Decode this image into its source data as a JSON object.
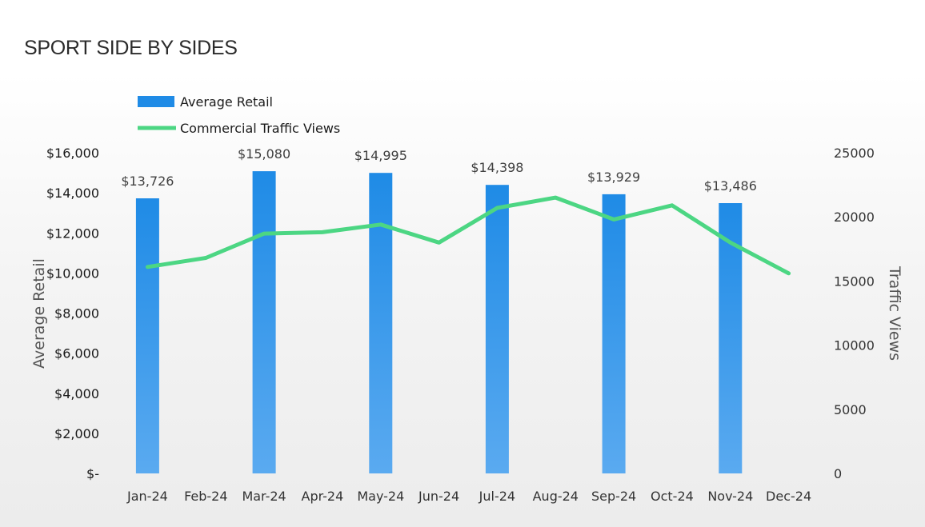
{
  "page": {
    "title": "SPORT SIDE BY SIDES"
  },
  "chart_data": {
    "type": "bar",
    "categories": [
      "Jan-24",
      "Feb-24",
      "Mar-24",
      "Apr-24",
      "May-24",
      "Jun-24",
      "Jul-24",
      "Aug-24",
      "Sep-24",
      "Oct-24",
      "Nov-24",
      "Dec-24"
    ],
    "series": [
      {
        "name": "Average Retail",
        "type": "bar",
        "axis": "left",
        "color": "#1f8be6",
        "values": [
          13726,
          null,
          15080,
          null,
          14995,
          null,
          14398,
          null,
          13929,
          null,
          13486,
          null
        ],
        "labels": [
          "$13,726",
          "",
          "$15,080",
          "",
          "$14,995",
          "",
          "$14,398",
          "",
          "$13,929",
          "",
          "$13,486",
          ""
        ]
      },
      {
        "name": "Commercial Traffic Views",
        "type": "line",
        "axis": "right",
        "color": "#4cd683",
        "values": [
          16100,
          16800,
          18700,
          18800,
          19400,
          18000,
          20700,
          21500,
          19800,
          20900,
          18000,
          15600
        ]
      }
    ],
    "ylabel_left": "Average Retail",
    "ylabel_right": "Traffic Views",
    "ylim_left": [
      0,
      16000
    ],
    "ylim_right": [
      0,
      25000
    ],
    "yticks_left": [
      "$-",
      "$2,000",
      "$4,000",
      "$6,000",
      "$8,000",
      "$10,000",
      "$12,000",
      "$14,000",
      "$16,000"
    ],
    "yticks_right": [
      "0",
      "5000",
      "10000",
      "15000",
      "20000",
      "25000"
    ],
    "legend": [
      "Average Retail",
      "Commercial Traffic Views"
    ],
    "legend_position": "top-left",
    "grid": false
  }
}
